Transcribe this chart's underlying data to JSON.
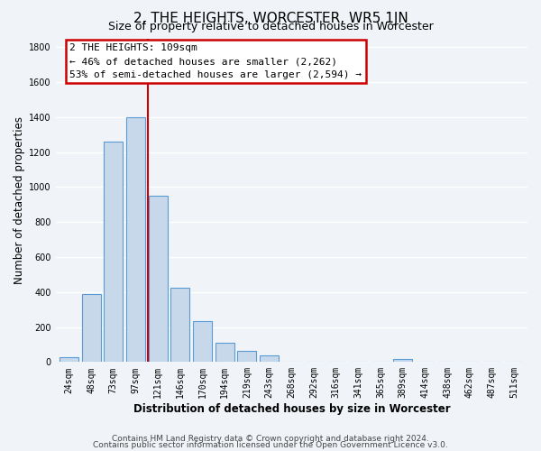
{
  "title": "2, THE HEIGHTS, WORCESTER, WR5 1JN",
  "subtitle": "Size of property relative to detached houses in Worcester",
  "xlabel": "Distribution of detached houses by size in Worcester",
  "ylabel": "Number of detached properties",
  "categories": [
    "24sqm",
    "48sqm",
    "73sqm",
    "97sqm",
    "121sqm",
    "146sqm",
    "170sqm",
    "194sqm",
    "219sqm",
    "243sqm",
    "268sqm",
    "292sqm",
    "316sqm",
    "341sqm",
    "365sqm",
    "389sqm",
    "414sqm",
    "438sqm",
    "462sqm",
    "487sqm",
    "511sqm"
  ],
  "bar_values": [
    25,
    390,
    1260,
    1400,
    950,
    425,
    235,
    110,
    65,
    40,
    0,
    0,
    0,
    0,
    0,
    15,
    0,
    0,
    0,
    0,
    0
  ],
  "bar_color": "#c8d8eb",
  "bar_edge_color": "#5b9bd5",
  "annotation_box_text_line1": "2 THE HEIGHTS: 109sqm",
  "annotation_box_text_line2": "← 46% of detached houses are smaller (2,262)",
  "annotation_box_text_line3": "53% of semi-detached houses are larger (2,594) →",
  "annotation_box_color": "#ffffff",
  "annotation_box_edge_color": "#cc0000",
  "vertical_line_color": "#cc0000",
  "footer_line1": "Contains HM Land Registry data © Crown copyright and database right 2024.",
  "footer_line2": "Contains public sector information licensed under the Open Government Licence v3.0.",
  "ylim": [
    0,
    1850
  ],
  "yticks": [
    0,
    200,
    400,
    600,
    800,
    1000,
    1200,
    1400,
    1600,
    1800
  ],
  "figsize": [
    6.0,
    5.0
  ],
  "dpi": 100,
  "background_color": "#f0f4f8",
  "grid_color": "#ffffff",
  "title_fontsize": 11,
  "subtitle_fontsize": 9,
  "axis_label_fontsize": 8.5,
  "tick_fontsize": 7,
  "annotation_fontsize": 8,
  "footer_fontsize": 6.5,
  "vline_x_bar_index": 3,
  "vline_x_offset": 0.55
}
